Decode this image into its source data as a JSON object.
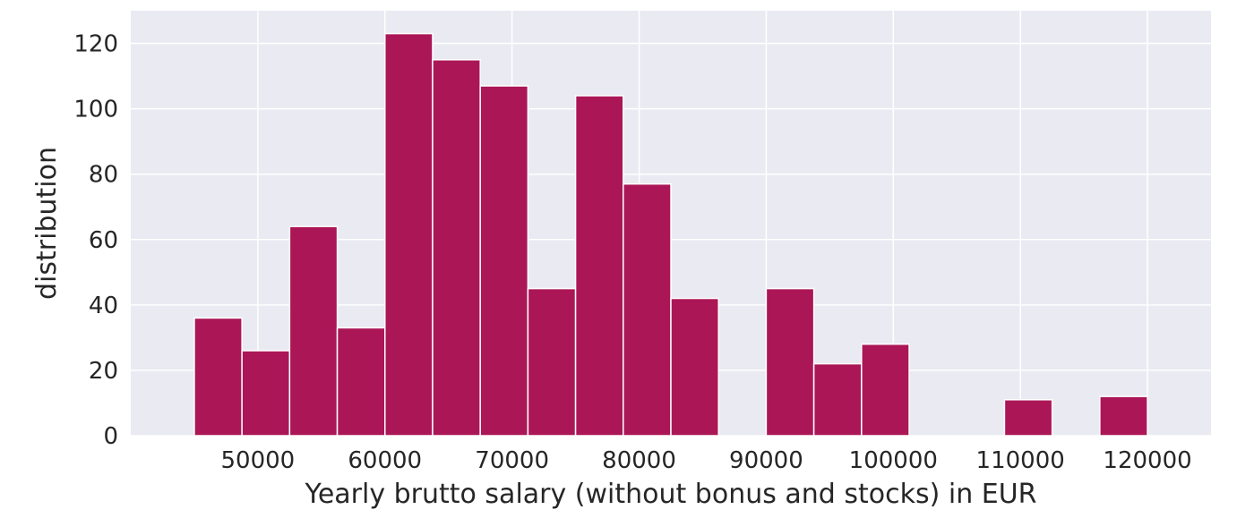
{
  "chart_data": {
    "type": "bar",
    "subtype": "histogram",
    "title": "",
    "xlabel": "Yearly brutto salary (without bonus and stocks) in EUR",
    "ylabel": "distribution",
    "xlim": [
      40000,
      125000
    ],
    "ylim": [
      0,
      130
    ],
    "x_ticks": [
      50000,
      60000,
      70000,
      80000,
      90000,
      100000,
      110000,
      120000
    ],
    "y_ticks": [
      0,
      20,
      40,
      60,
      80,
      100,
      120
    ],
    "grid": true,
    "bar_color": "#ab1657",
    "background_color": "#eaeaf2",
    "bins": [
      {
        "start": 45000,
        "end": 48750,
        "count": 36
      },
      {
        "start": 48750,
        "end": 52500,
        "count": 26
      },
      {
        "start": 52500,
        "end": 56250,
        "count": 64
      },
      {
        "start": 56250,
        "end": 60000,
        "count": 33
      },
      {
        "start": 60000,
        "end": 63750,
        "count": 123
      },
      {
        "start": 63750,
        "end": 67500,
        "count": 115
      },
      {
        "start": 67500,
        "end": 71250,
        "count": 107
      },
      {
        "start": 71250,
        "end": 75000,
        "count": 45
      },
      {
        "start": 75000,
        "end": 78750,
        "count": 104
      },
      {
        "start": 78750,
        "end": 82500,
        "count": 77
      },
      {
        "start": 82500,
        "end": 86250,
        "count": 42
      },
      {
        "start": 86250,
        "end": 90000,
        "count": 0
      },
      {
        "start": 90000,
        "end": 93750,
        "count": 45
      },
      {
        "start": 93750,
        "end": 97500,
        "count": 22
      },
      {
        "start": 97500,
        "end": 101250,
        "count": 28
      },
      {
        "start": 101250,
        "end": 105000,
        "count": 0
      },
      {
        "start": 105000,
        "end": 108750,
        "count": 0
      },
      {
        "start": 108750,
        "end": 112500,
        "count": 11
      },
      {
        "start": 112500,
        "end": 116250,
        "count": 0
      },
      {
        "start": 116250,
        "end": 120000,
        "count": 12
      }
    ]
  }
}
